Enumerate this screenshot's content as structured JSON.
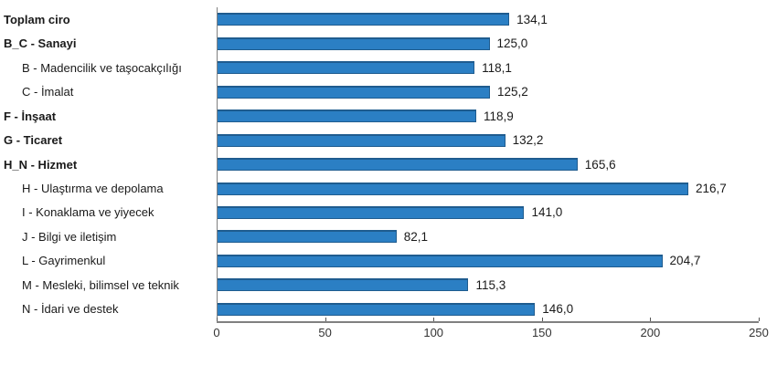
{
  "chart_data": {
    "type": "bar",
    "orientation": "horizontal",
    "title": "",
    "xlabel": "",
    "ylabel": "",
    "xlim": [
      0,
      250
    ],
    "x_ticks": [
      "0",
      "50",
      "100",
      "150",
      "200",
      "250"
    ],
    "grid": false,
    "legend": "none",
    "bar_color": "#2b7fc4",
    "bar_border_color": "#1f5c8f",
    "axis_color": "#808080",
    "categories": [
      "Toplam ciro",
      "B_C - Sanayi",
      "B - Madencilik ve taşocakçılığı",
      "C - İmalat",
      "F - İnşaat",
      "G - Ticaret",
      "H_N - Hizmet",
      "H - Ulaştırma ve depolama",
      "I - Konaklama ve yiyecek",
      "J - Bilgi ve iletişim",
      "L - Gayrimenkul",
      "M - Mesleki, bilimsel ve teknik",
      "N - İdari ve destek"
    ],
    "values": [
      134.1,
      125.0,
      118.1,
      125.2,
      118.9,
      132.2,
      165.6,
      216.7,
      141.0,
      82.1,
      204.7,
      115.3,
      146.0
    ],
    "rows": [
      {
        "label": "Toplam ciro",
        "value": 134.1,
        "value_label": "134,1",
        "bold": true,
        "indent": false
      },
      {
        "label": "B_C - Sanayi",
        "value": 125.0,
        "value_label": "125,0",
        "bold": true,
        "indent": false
      },
      {
        "label": "B - Madencilik ve taşocakçılığı",
        "value": 118.1,
        "value_label": "118,1",
        "bold": false,
        "indent": true
      },
      {
        "label": "C - İmalat",
        "value": 125.2,
        "value_label": "125,2",
        "bold": false,
        "indent": true
      },
      {
        "label": "F - İnşaat",
        "value": 118.9,
        "value_label": "118,9",
        "bold": true,
        "indent": false
      },
      {
        "label": "G - Ticaret",
        "value": 132.2,
        "value_label": "132,2",
        "bold": true,
        "indent": false
      },
      {
        "label": "H_N - Hizmet",
        "value": 165.6,
        "value_label": "165,6",
        "bold": true,
        "indent": false
      },
      {
        "label": "H - Ulaştırma ve depolama",
        "value": 216.7,
        "value_label": "216,7",
        "bold": false,
        "indent": true
      },
      {
        "label": "I - Konaklama ve yiyecek",
        "value": 141.0,
        "value_label": "141,0",
        "bold": false,
        "indent": true
      },
      {
        "label": "J - Bilgi ve iletişim",
        "value": 82.1,
        "value_label": "82,1",
        "bold": false,
        "indent": true
      },
      {
        "label": "L - Gayrimenkul",
        "value": 204.7,
        "value_label": "204,7",
        "bold": false,
        "indent": true
      },
      {
        "label": "M - Mesleki, bilimsel ve teknik",
        "value": 115.3,
        "value_label": "115,3",
        "bold": false,
        "indent": true
      },
      {
        "label": "N - İdari ve destek",
        "value": 146.0,
        "value_label": "146,0",
        "bold": false,
        "indent": true
      }
    ]
  }
}
